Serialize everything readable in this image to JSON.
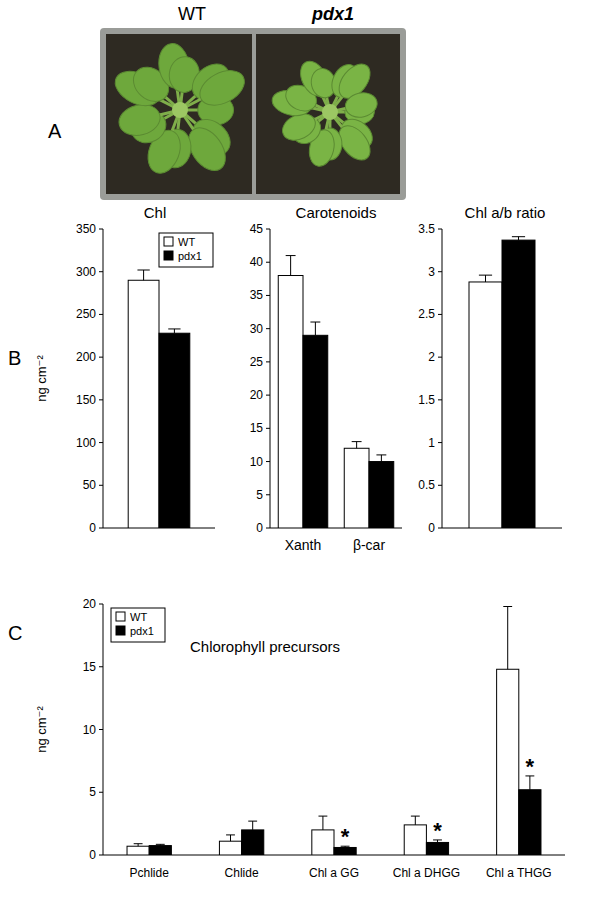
{
  "figure": {
    "panel_labels": [
      "A",
      "B",
      "C"
    ],
    "photo_labels": [
      "WT",
      "pdx1"
    ]
  },
  "chart_data": [
    {
      "type": "bar",
      "title": "Chl",
      "y_label": "ng cm⁻²",
      "categories": [
        null
      ],
      "series": [
        {
          "name": "WT",
          "color": "#ffffff",
          "values": [
            290
          ],
          "errors": [
            12
          ]
        },
        {
          "name": "pdx1",
          "color": "#000000",
          "values": [
            228
          ],
          "errors": [
            5
          ]
        }
      ],
      "ylim": [
        0,
        350
      ],
      "yticks": [
        0,
        50,
        100,
        150,
        200,
        250,
        300,
        350
      ],
      "legend": "upper right"
    },
    {
      "type": "bar",
      "title": "Carotenoids",
      "categories": [
        "Xanth",
        "β-car"
      ],
      "series": [
        {
          "name": "WT",
          "color": "#ffffff",
          "values": [
            38,
            12
          ],
          "errors": [
            3,
            1
          ]
        },
        {
          "name": "pdx1",
          "color": "#000000",
          "values": [
            29,
            10
          ],
          "errors": [
            2,
            1
          ]
        }
      ],
      "ylim": [
        0,
        45
      ],
      "yticks": [
        0,
        5,
        10,
        15,
        20,
        25,
        30,
        35,
        40,
        45
      ]
    },
    {
      "type": "bar",
      "title": "Chl a/b ratio",
      "categories": [
        null
      ],
      "series": [
        {
          "name": "WT",
          "color": "#ffffff",
          "values": [
            2.88
          ],
          "errors": [
            0.08
          ]
        },
        {
          "name": "pdx1",
          "color": "#000000",
          "values": [
            3.37
          ],
          "errors": [
            0.04
          ]
        }
      ],
      "ylim": [
        0,
        3.5
      ],
      "yticks": [
        0,
        0.5,
        1,
        1.5,
        2,
        2.5,
        3,
        3.5
      ]
    },
    {
      "type": "bar",
      "title": "Chlorophyll precursors",
      "y_label": "ng cm⁻²",
      "categories": [
        "Pchlide",
        "Chlide",
        "Chl a GG",
        "Chl a DHGG",
        "Chl a THGG"
      ],
      "series": [
        {
          "name": "WT",
          "color": "#ffffff",
          "values": [
            0.7,
            1.1,
            2.0,
            2.4,
            14.8
          ],
          "errors": [
            0.2,
            0.5,
            1.1,
            0.7,
            5.0
          ]
        },
        {
          "name": "pdx1",
          "color": "#000000",
          "values": [
            0.75,
            2.0,
            0.6,
            1.0,
            5.2
          ],
          "errors": [
            0.1,
            0.7,
            0.1,
            0.2,
            1.1
          ]
        }
      ],
      "ylim": [
        0,
        20
      ],
      "yticks": [
        0,
        5,
        10,
        15,
        20
      ],
      "legend": "upper left",
      "annotations": [
        {
          "text": "*",
          "series": 1,
          "index": 2
        },
        {
          "text": "*",
          "series": 1,
          "index": 3
        },
        {
          "text": "*",
          "series": 1,
          "index": 4
        }
      ]
    }
  ]
}
